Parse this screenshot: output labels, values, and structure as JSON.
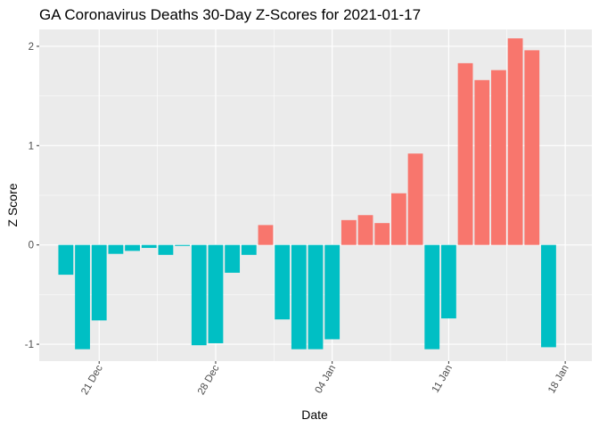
{
  "chart_data": {
    "type": "bar",
    "title": "GA Coronavirus Deaths 30-Day Z-Scores for 2021-01-17",
    "xlabel": "Date",
    "ylabel": "Z Score",
    "ylim": [
      -1.17,
      2.17
    ],
    "y_ticks": [
      -1,
      0,
      1,
      2
    ],
    "y_tick_labels": [
      "-1",
      "0",
      "1",
      "2"
    ],
    "x_domain_day_offsets": [
      -1.6,
      31.6
    ],
    "x_ticks": [
      {
        "day_offset": 2,
        "label": "21 Dec"
      },
      {
        "day_offset": 9,
        "label": "28 Dec"
      },
      {
        "day_offset": 16,
        "label": "04 Jan"
      },
      {
        "day_offset": 23,
        "label": "11 Jan"
      },
      {
        "day_offset": 30,
        "label": "18 Jan"
      }
    ],
    "grid": true,
    "legend": "none",
    "positive_color": "#F8766D",
    "negative_color": "#00BFC4",
    "categories": [
      "2020-12-19",
      "2020-12-20",
      "2020-12-21",
      "2020-12-22",
      "2020-12-23",
      "2020-12-24",
      "2020-12-25",
      "2020-12-26",
      "2020-12-27",
      "2020-12-28",
      "2020-12-29",
      "2020-12-30",
      "2020-12-31",
      "2021-01-01",
      "2021-01-02",
      "2021-01-03",
      "2021-01-04",
      "2021-01-05",
      "2021-01-06",
      "2021-01-07",
      "2021-01-08",
      "2021-01-09",
      "2021-01-10",
      "2021-01-11",
      "2021-01-12",
      "2021-01-13",
      "2021-01-14",
      "2021-01-15",
      "2021-01-16",
      "2021-01-17"
    ],
    "values": [
      -0.3,
      -1.05,
      -0.76,
      -0.09,
      -0.06,
      -0.03,
      -0.1,
      -0.01,
      -1.01,
      -0.99,
      -0.28,
      -0.1,
      0.2,
      -0.75,
      -1.05,
      -1.05,
      -0.95,
      0.25,
      0.3,
      0.22,
      0.52,
      0.92,
      -1.05,
      -0.74,
      1.83,
      1.66,
      1.76,
      2.08,
      1.96,
      -1.03
    ]
  }
}
